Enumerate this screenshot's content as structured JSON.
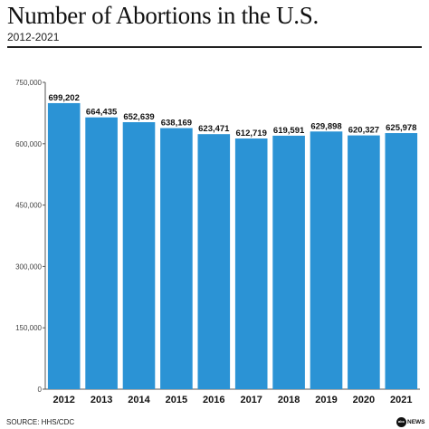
{
  "header": {
    "title": "Number of Abortions in the U.S.",
    "subtitle": "2012-2021"
  },
  "footer": {
    "source": "SOURCE: HHS/CDC",
    "logo_mark": "abc",
    "logo_text": "NEWS"
  },
  "colors": {
    "bar": "#2b93d5",
    "axis": "#555555",
    "grid": "#bbbbbb"
  },
  "chart_data": {
    "type": "bar",
    "title": "Number of Abortions in the U.S.",
    "subtitle": "2012-2021",
    "categories": [
      "2012",
      "2013",
      "2014",
      "2015",
      "2016",
      "2017",
      "2018",
      "2019",
      "2020",
      "2021"
    ],
    "values": [
      699202,
      664435,
      652639,
      638169,
      623471,
      612719,
      619591,
      629898,
      620327,
      625978
    ],
    "data_labels": [
      "699,202",
      "664,435",
      "652,639",
      "638,169",
      "623,471",
      "612,719",
      "619,591",
      "629,898",
      "620,327",
      "625,978"
    ],
    "yticks": [
      0,
      150000,
      300000,
      450000,
      600000,
      750000
    ],
    "ytick_labels": [
      "0",
      "150,000",
      "300,000",
      "450,000",
      "600,000",
      "750,000"
    ],
    "ylim": [
      0,
      750000
    ],
    "xlabel": "",
    "ylabel": "",
    "grid": false,
    "legend": "none"
  }
}
